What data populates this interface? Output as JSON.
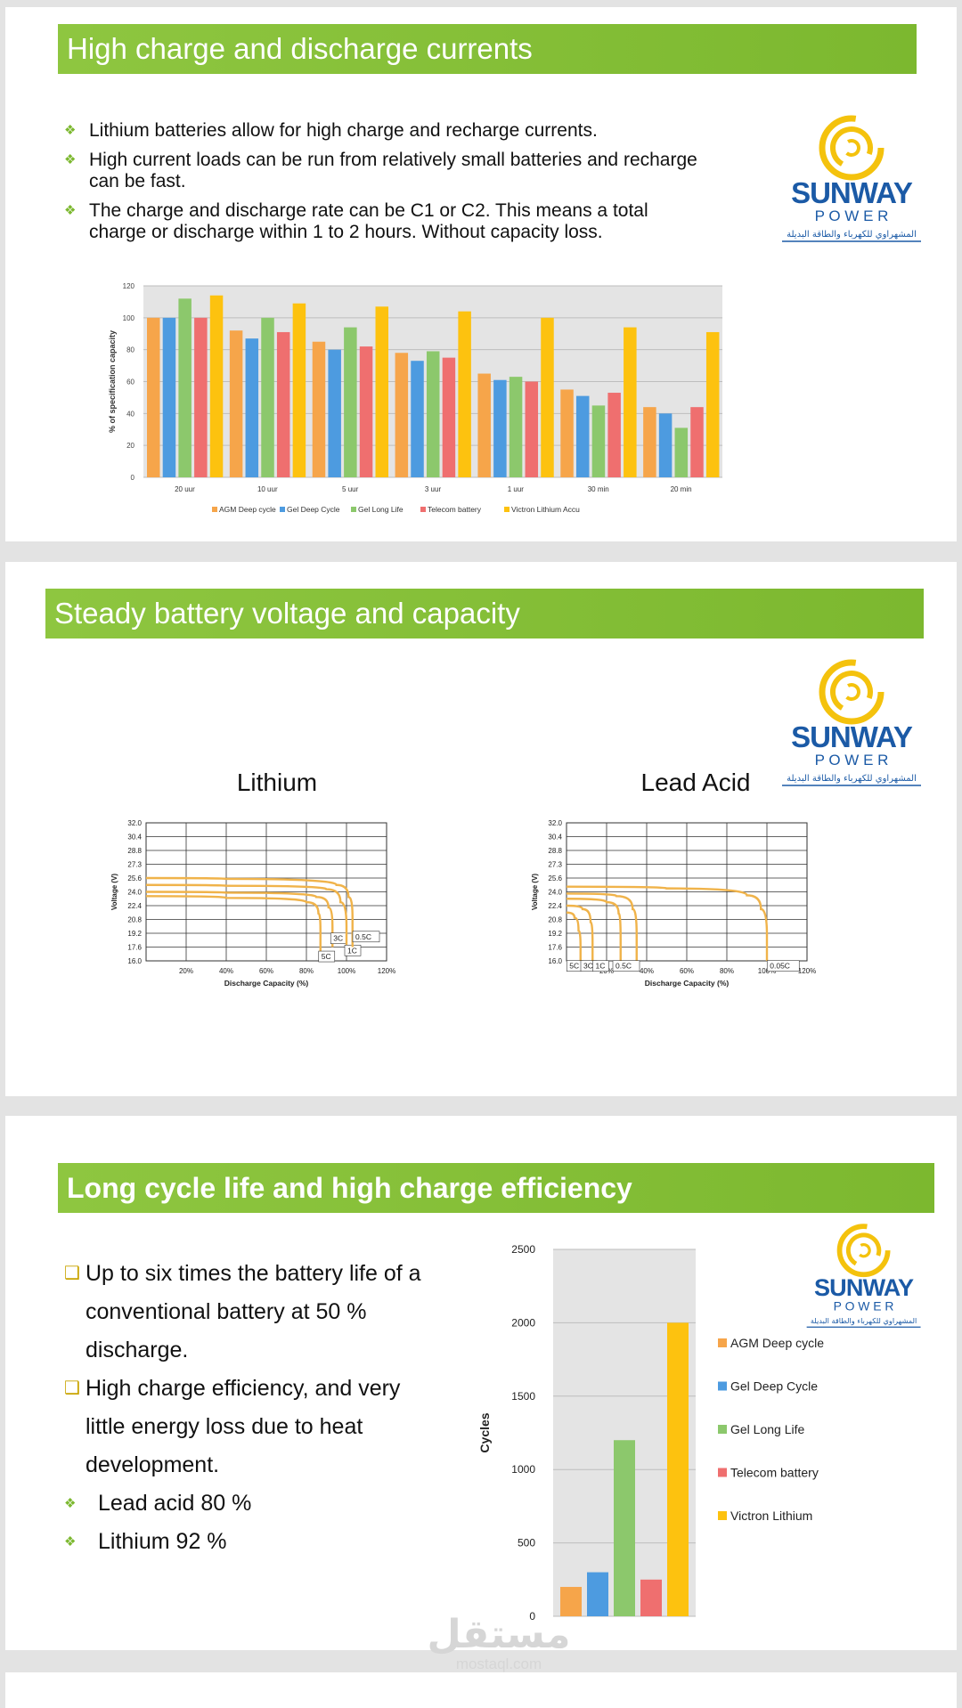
{
  "brand": {
    "name_line1": "SUNWAY",
    "name_line2": "P O W E R",
    "tagline": "المشهراوي للكهرباء والطاقة البديلة",
    "colors": {
      "blue": "#1b5aa6",
      "yellow": "#f4c20d",
      "green": "#8ec640"
    }
  },
  "slide1": {
    "title": "High charge and discharge currents",
    "bullets": [
      "Lithium batteries allow for high charge and recharge currents.",
      "High current loads can be run from relatively small batteries and recharge can be fast.",
      "The charge and discharge rate can be C1 or C2. This means a total charge or discharge within 1 to 2 hours. Without capacity loss."
    ]
  },
  "slide2": {
    "title": "Steady battery voltage and capacity",
    "lithium_title": "Lithium",
    "lead_title": "Lead Acid"
  },
  "slide3": {
    "title": "Long cycle life and high charge efficiency",
    "bullets": [
      "Up to six times the battery life of a conventional battery at 50 % discharge.",
      "High charge efficiency, and very little energy loss due to heat development.",
      "Lead acid 80 %",
      "Lithium 92 %"
    ]
  },
  "watermark": {
    "arabic": "مستقل",
    "latin": "mostaql.com"
  },
  "chart_data": [
    {
      "type": "bar",
      "categories": [
        "20 uur",
        "10 uur",
        "5 uur",
        "3 uur",
        "1 uur",
        "30 min",
        "20 min"
      ],
      "series": [
        {
          "name": "AGM Deep cycle",
          "color": "#f6a54a",
          "values": [
            100,
            92,
            85,
            78,
            65,
            55,
            44
          ]
        },
        {
          "name": "Gel Deep Cycle",
          "color": "#4d9be0",
          "values": [
            100,
            87,
            80,
            73,
            61,
            51,
            40
          ]
        },
        {
          "name": "Gel Long Life",
          "color": "#8cc86c",
          "values": [
            112,
            100,
            94,
            79,
            63,
            45,
            31
          ]
        },
        {
          "name": "Telecom battery",
          "color": "#ef6f6f",
          "values": [
            100,
            91,
            82,
            75,
            60,
            53,
            44
          ]
        },
        {
          "name": "Victron Lithium Accu",
          "color": "#fdc20f",
          "values": [
            114,
            109,
            107,
            104,
            100,
            94,
            91
          ]
        }
      ],
      "ylabel": "% of specification capacity",
      "ylim": [
        0,
        120
      ],
      "yticks": [
        "0",
        "20",
        "40",
        "60",
        "80",
        "100",
        "120"
      ],
      "legend": "bottom",
      "grid": true
    },
    {
      "type": "line",
      "title": "Lithium",
      "xlabel": "Discharge Capacity (%)",
      "ylabel": "Voltage (V)",
      "xlim": [
        0,
        120
      ],
      "ylim": [
        16.0,
        32.0
      ],
      "xticks": [
        "20%",
        "40%",
        "60%",
        "80%",
        "100%",
        "120%"
      ],
      "yticks": [
        "16.0",
        "17.6",
        "19.2",
        "20.8",
        "22.4",
        "24.0",
        "25.6",
        "27.3",
        "28.8",
        "30.4",
        "32.0"
      ],
      "series": [
        {
          "name": "5C",
          "x": [
            0,
            40,
            80,
            86,
            87,
            87
          ],
          "y": [
            23.5,
            23.3,
            22.8,
            21.5,
            19.5,
            17.0
          ]
        },
        {
          "name": "3C",
          "x": [
            0,
            40,
            85,
            91,
            93,
            93
          ],
          "y": [
            24.0,
            23.9,
            23.4,
            22.2,
            20.0,
            17.6
          ]
        },
        {
          "name": "1C",
          "x": [
            0,
            40,
            90,
            97,
            100,
            100
          ],
          "y": [
            24.8,
            24.7,
            24.3,
            22.8,
            20.0,
            16.8
          ]
        },
        {
          "name": "0.5C",
          "x": [
            0,
            40,
            95,
            101,
            103,
            103
          ],
          "y": [
            25.6,
            25.5,
            24.8,
            23.4,
            21.0,
            17.6
          ]
        }
      ],
      "color": "#f0b34a",
      "grid": true
    },
    {
      "type": "line",
      "title": "Lead Acid",
      "xlabel": "Discharge Capacity (%)",
      "ylabel": "Voltage (V)",
      "xlim": [
        0,
        120
      ],
      "ylim": [
        16.0,
        32.0
      ],
      "xticks": [
        "20%",
        "40%",
        "60%",
        "80%",
        "100%",
        "120%"
      ],
      "yticks": [
        "16.0",
        "17.6",
        "19.2",
        "20.8",
        "22.4",
        "24.0",
        "25.6",
        "27.3",
        "28.8",
        "30.4",
        "32.0"
      ],
      "series": [
        {
          "name": "5C",
          "x": [
            0,
            4,
            6,
            7,
            7
          ],
          "y": [
            21.6,
            21.0,
            19.5,
            17.6,
            16.0
          ]
        },
        {
          "name": "3C",
          "x": [
            0,
            8,
            12,
            13,
            13
          ],
          "y": [
            22.4,
            22.0,
            20.5,
            18.0,
            16.0
          ]
        },
        {
          "name": "1C",
          "x": [
            0,
            20,
            26,
            27,
            27
          ],
          "y": [
            23.2,
            22.8,
            21.5,
            18.5,
            16.0
          ]
        },
        {
          "name": "0.5C",
          "x": [
            0,
            25,
            33,
            35,
            35
          ],
          "y": [
            23.8,
            23.5,
            22.0,
            19.0,
            16.0
          ]
        },
        {
          "name": "0.05C",
          "x": [
            0,
            50,
            90,
            97,
            100,
            100
          ],
          "y": [
            24.6,
            24.4,
            23.6,
            22.0,
            19.0,
            16.0
          ]
        }
      ],
      "color": "#f0b34a",
      "grid": true
    },
    {
      "type": "bar",
      "categories": [
        "AGM Deep cycle",
        "Gel Deep Cycle",
        "Gel Long Life",
        "Telecom battery",
        "Victron Lithium"
      ],
      "values": [
        200,
        300,
        1200,
        250,
        2000
      ],
      "colors": [
        "#f6a54a",
        "#4d9be0",
        "#8cc86c",
        "#ef6f6f",
        "#fdc20f"
      ],
      "ylabel": "Cycles",
      "ylim": [
        0,
        2500
      ],
      "yticks": [
        "0",
        "500",
        "1000",
        "1500",
        "2000",
        "2500"
      ],
      "legend": "right",
      "grid": true
    }
  ]
}
